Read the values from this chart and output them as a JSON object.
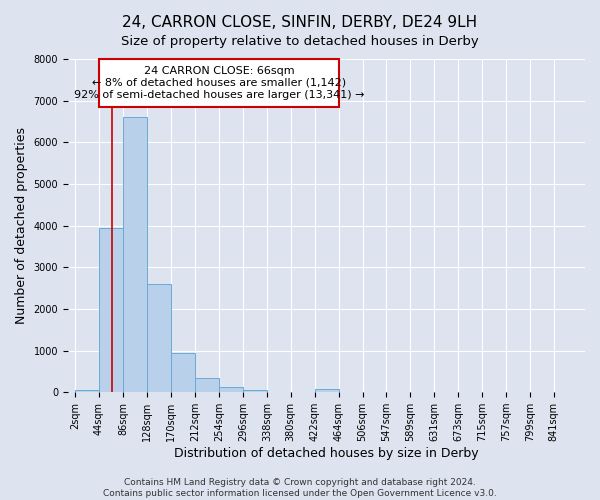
{
  "title": "24, CARRON CLOSE, SINFIN, DERBY, DE24 9LH",
  "subtitle": "Size of property relative to detached houses in Derby",
  "xlabel": "Distribution of detached houses by size in Derby",
  "ylabel": "Number of detached properties",
  "bin_labels": [
    "2sqm",
    "44sqm",
    "86sqm",
    "128sqm",
    "170sqm",
    "212sqm",
    "254sqm",
    "296sqm",
    "338sqm",
    "380sqm",
    "422sqm",
    "464sqm",
    "506sqm",
    "547sqm",
    "589sqm",
    "631sqm",
    "673sqm",
    "715sqm",
    "757sqm",
    "799sqm",
    "841sqm"
  ],
  "bar_values": [
    50,
    3950,
    6600,
    2600,
    950,
    330,
    130,
    50,
    0,
    0,
    80,
    0,
    0,
    0,
    0,
    0,
    0,
    0,
    0,
    0,
    0
  ],
  "bar_color": "#b8d0ea",
  "bar_edge_color": "#6aaad4",
  "property_line_x": 66,
  "property_line_color": "#cc0000",
  "annotation_line1": "24 CARRON CLOSE: 66sqm",
  "annotation_line2": "← 8% of detached houses are smaller (1,142)",
  "annotation_line3": "92% of semi-detached houses are larger (13,341) →",
  "annotation_box_color": "#ffffff",
  "annotation_box_edge_color": "#cc0000",
  "ylim": [
    0,
    8000
  ],
  "bin_width": 42,
  "footnote": "Contains HM Land Registry data © Crown copyright and database right 2024.\nContains public sector information licensed under the Open Government Licence v3.0.",
  "background_color": "#dde4f0",
  "plot_background_color": "#dde4f0",
  "grid_color": "#ffffff",
  "title_fontsize": 11,
  "subtitle_fontsize": 9.5,
  "axis_label_fontsize": 9,
  "tick_fontsize": 7,
  "annotation_fontsize": 8,
  "footnote_fontsize": 6.5
}
